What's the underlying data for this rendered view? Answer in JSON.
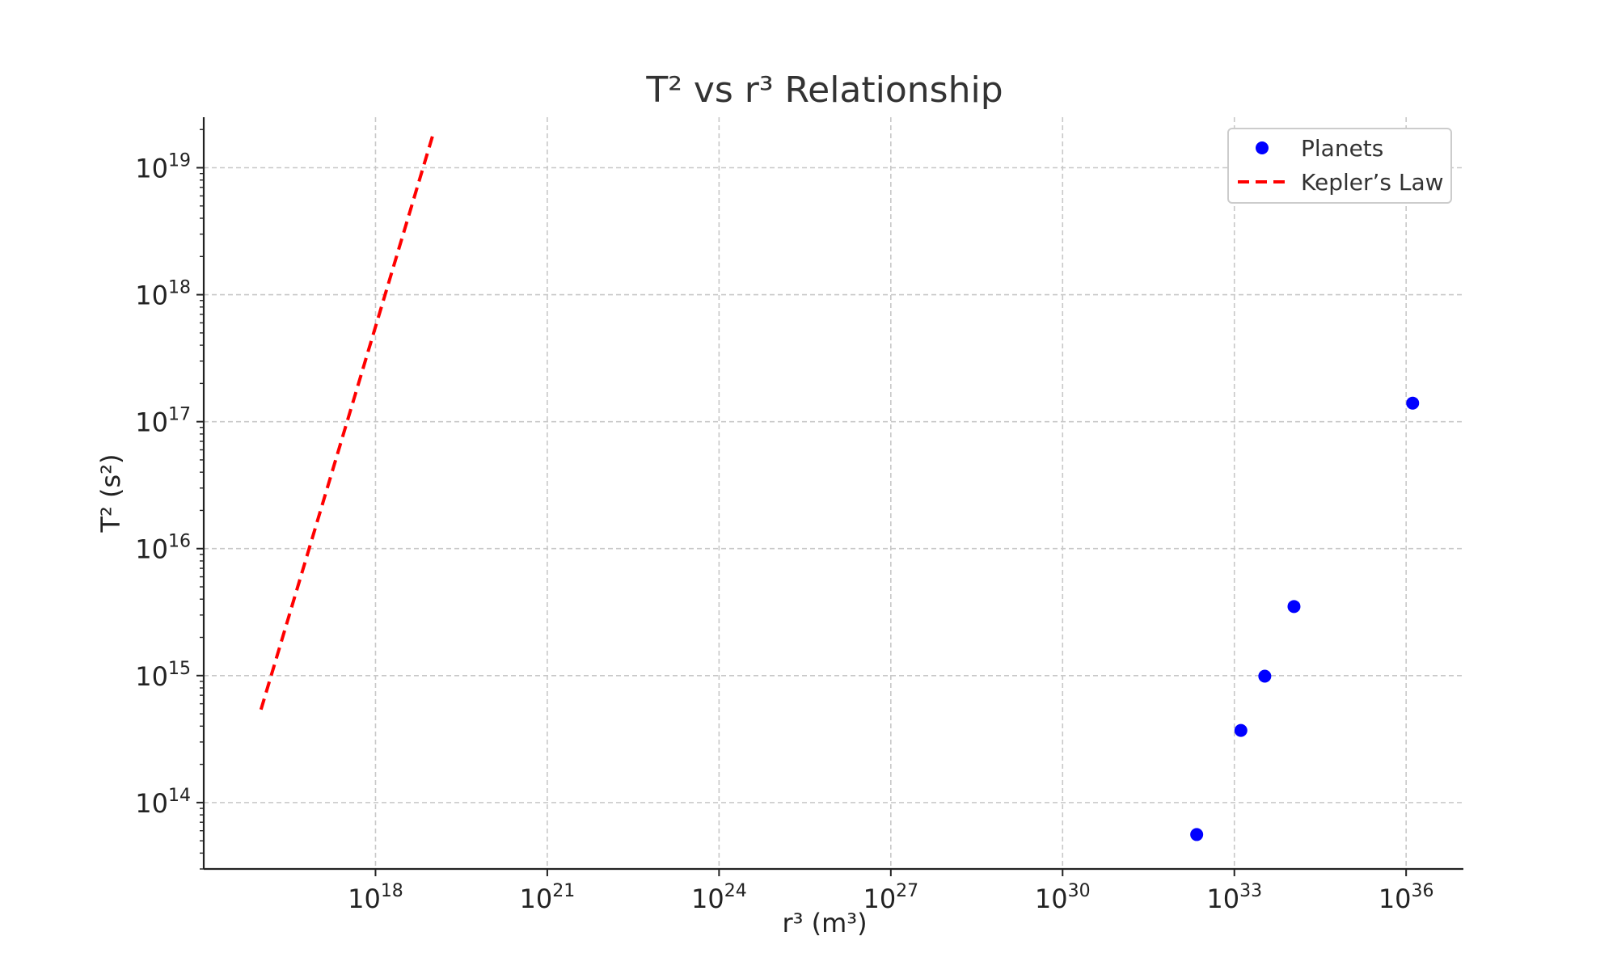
{
  "chart_data": {
    "type": "scatter",
    "title": "T² vs r³ Relationship",
    "xlabel": "r³ (m³)",
    "ylabel": "T² (s²)",
    "xscale": "log",
    "yscale": "log",
    "xlim": [
      1000000000000000.0,
      1e+37
    ],
    "ylim": [
      30000000000000.0,
      2.5e+19
    ],
    "grid": true,
    "legend_position": "top-right",
    "x_ticks": [
      {
        "base": "10",
        "exp": "18",
        "value": 1e+18
      },
      {
        "base": "10",
        "exp": "21",
        "value": 1e+21
      },
      {
        "base": "10",
        "exp": "24",
        "value": 1e+24
      },
      {
        "base": "10",
        "exp": "27",
        "value": 1e+27
      },
      {
        "base": "10",
        "exp": "30",
        "value": 1e+30
      },
      {
        "base": "10",
        "exp": "33",
        "value": 1e+33
      },
      {
        "base": "10",
        "exp": "36",
        "value": 1e+36
      }
    ],
    "y_ticks": [
      {
        "base": "10",
        "exp": "14",
        "value": 100000000000000.0
      },
      {
        "base": "10",
        "exp": "15",
        "value": 1000000000000000.0
      },
      {
        "base": "10",
        "exp": "16",
        "value": 1e+16
      },
      {
        "base": "10",
        "exp": "17",
        "value": 1e+17
      },
      {
        "base": "10",
        "exp": "18",
        "value": 1e+18
      },
      {
        "base": "10",
        "exp": "19",
        "value": 1e+19
      }
    ],
    "series": [
      {
        "name": "Planets",
        "kind": "scatter",
        "color": "#0000ff",
        "points": [
          {
            "x": 2.2e+32,
            "y": 56000000000000.0
          },
          {
            "x": 1.3e+33,
            "y": 370000000000000.0
          },
          {
            "x": 3.4e+33,
            "y": 990000000000000.0
          },
          {
            "x": 1.1e+34,
            "y": 3500000000000000.0
          },
          {
            "x": 1.3e+36,
            "y": 1.4e+17
          }
        ]
      },
      {
        "name": "Kepler’s Law",
        "kind": "line",
        "color": "#ff0000",
        "dash": "dashed",
        "points": [
          {
            "x": 1e+16,
            "y": 540000000000000.0
          },
          {
            "x": 1e+19,
            "y": 1.8e+19
          }
        ]
      }
    ]
  }
}
